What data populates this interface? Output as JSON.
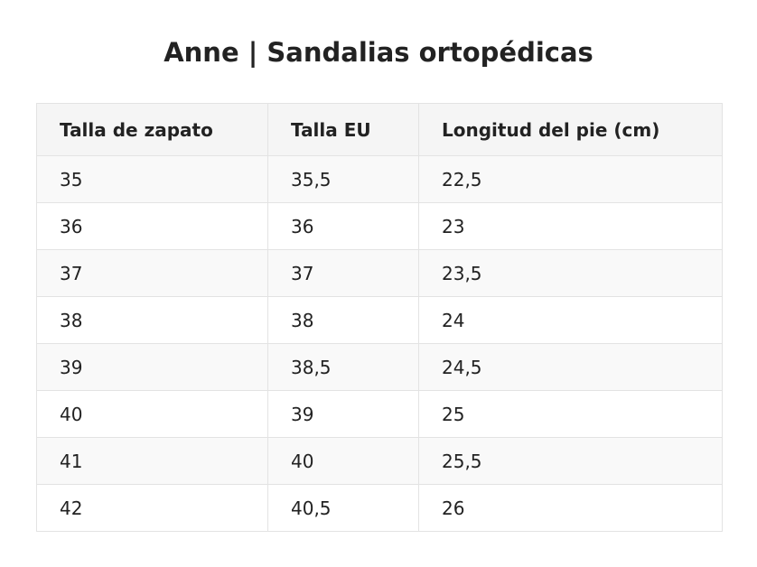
{
  "title": "Anne | Sandalias ortopédicas",
  "table": {
    "headers": [
      "Talla de zapato",
      "Talla EU",
      "Longitud del pie (cm)"
    ],
    "rows": [
      [
        "35",
        "35,5",
        "22,5"
      ],
      [
        "36",
        "36",
        "23"
      ],
      [
        "37",
        "37",
        "23,5"
      ],
      [
        "38",
        "38",
        "24"
      ],
      [
        "39",
        "38,5",
        "24,5"
      ],
      [
        "40",
        "39",
        "25"
      ],
      [
        "41",
        "40",
        "25,5"
      ],
      [
        "42",
        "40,5",
        "26"
      ]
    ]
  }
}
